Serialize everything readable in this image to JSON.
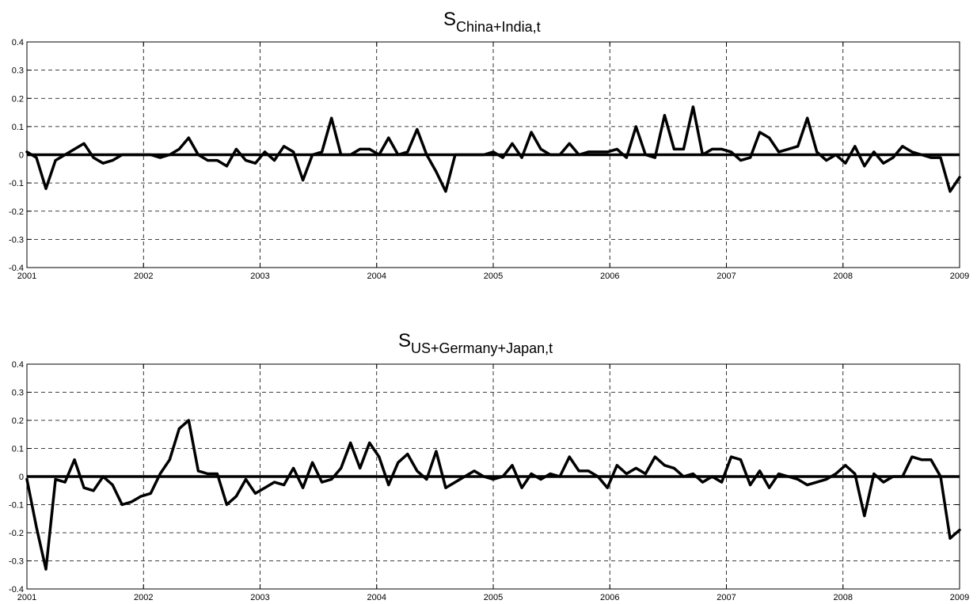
{
  "chart_data": [
    {
      "type": "line",
      "title_main": "S",
      "title_sub": "China+India,t",
      "xlabel": "",
      "ylabel": "",
      "xlim": [
        2001,
        2009
      ],
      "ylim": [
        -0.4,
        0.4
      ],
      "x_ticks": [
        "2001",
        "2002",
        "2003",
        "2004",
        "2005",
        "2006",
        "2007",
        "2008",
        "2009"
      ],
      "y_ticks": [
        "0.4",
        "0.3",
        "0.2",
        "0.1",
        "0",
        "-0.1",
        "-0.2",
        "-0.3",
        "-0.4"
      ],
      "grid": true,
      "zero_line": true,
      "series": [
        {
          "values": [
            0.01,
            -0.01,
            -0.12,
            -0.02,
            0.0,
            0.02,
            0.04,
            -0.01,
            -0.03,
            -0.02,
            0.0,
            0.0,
            0.0,
            0.0,
            -0.01,
            0.0,
            0.02,
            0.06,
            0.0,
            -0.02,
            -0.02,
            -0.04,
            0.02,
            -0.02,
            -0.03,
            0.01,
            -0.02,
            0.03,
            0.01,
            -0.09,
            0.0,
            0.01,
            0.13,
            0.0,
            0.0,
            0.02,
            0.02,
            0.0,
            0.06,
            0.0,
            0.01,
            0.09,
            0.0,
            -0.06,
            -0.13,
            0.0,
            0.0,
            0.0,
            0.0,
            0.01,
            -0.01,
            0.04,
            -0.01,
            0.08,
            0.02,
            0.0,
            0.0,
            0.04,
            0.0,
            0.01,
            0.01,
            0.01,
            0.02,
            -0.01,
            0.1,
            0.0,
            -0.01,
            0.14,
            0.02,
            0.02,
            0.17,
            0.0,
            0.02,
            0.02,
            0.01,
            -0.02,
            -0.01,
            0.08,
            0.06,
            0.01,
            0.02,
            0.03,
            0.13,
            0.01,
            -0.02,
            0.0,
            -0.03,
            0.03,
            -0.04,
            0.01,
            -0.03,
            -0.01,
            0.03,
            0.01,
            0.0,
            -0.01,
            -0.01,
            -0.13,
            -0.08
          ]
        }
      ]
    },
    {
      "type": "line",
      "title_main": "S",
      "title_sub": "US+Germany+Japan,t",
      "xlabel": "",
      "ylabel": "",
      "xlim": [
        2001,
        2009
      ],
      "ylim": [
        -0.4,
        0.4
      ],
      "x_ticks": [
        "2001",
        "2002",
        "2003",
        "2004",
        "2005",
        "2006",
        "2007",
        "2008",
        "2009"
      ],
      "y_ticks": [
        "0.4",
        "0.3",
        "0.2",
        "0.1",
        "0",
        "-0.1",
        "-0.2",
        "-0.3",
        "-0.4"
      ],
      "grid": true,
      "zero_line": true,
      "series": [
        {
          "values": [
            -0.01,
            -0.18,
            -0.33,
            -0.01,
            -0.02,
            0.06,
            -0.04,
            -0.05,
            0.0,
            -0.03,
            -0.1,
            -0.09,
            -0.07,
            -0.06,
            0.01,
            0.06,
            0.17,
            0.2,
            0.02,
            0.01,
            0.01,
            -0.1,
            -0.07,
            -0.01,
            -0.06,
            -0.04,
            -0.02,
            -0.03,
            0.03,
            -0.04,
            0.05,
            -0.02,
            -0.01,
            0.03,
            0.12,
            0.03,
            0.12,
            0.07,
            -0.03,
            0.05,
            0.08,
            0.02,
            -0.01,
            0.09,
            -0.04,
            -0.02,
            0.0,
            0.02,
            0.0,
            -0.01,
            0.0,
            0.04,
            -0.04,
            0.01,
            -0.01,
            0.01,
            0.0,
            0.07,
            0.02,
            0.02,
            0.0,
            -0.04,
            0.04,
            0.01,
            0.03,
            0.01,
            0.07,
            0.04,
            0.03,
            0.0,
            0.01,
            -0.02,
            0.0,
            -0.02,
            0.07,
            0.06,
            -0.03,
            0.02,
            -0.04,
            0.01,
            0.0,
            -0.01,
            -0.03,
            -0.02,
            -0.01,
            0.01,
            0.04,
            0.01,
            -0.14,
            0.01,
            -0.02,
            0.0,
            0.0,
            0.07,
            0.06,
            0.06,
            0.0,
            -0.22,
            -0.19
          ]
        }
      ]
    }
  ]
}
